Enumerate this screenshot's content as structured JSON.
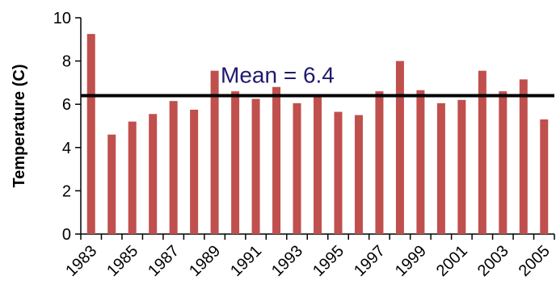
{
  "chart_data": {
    "type": "bar",
    "title": "",
    "xlabel": "",
    "ylabel": "Temperature (C)",
    "ylim": [
      0,
      10
    ],
    "yticks": [
      0,
      2,
      4,
      6,
      8,
      10
    ],
    "grid": false,
    "categories": [
      "1983",
      "1984",
      "1985",
      "1986",
      "1987",
      "1988",
      "1989",
      "1990",
      "1991",
      "1992",
      "1993",
      "1994",
      "1995",
      "1996",
      "1997",
      "1998",
      "1999",
      "2000",
      "2001",
      "2002",
      "2003",
      "2004",
      "2005"
    ],
    "x_tick_labels": [
      "1983",
      "1985",
      "1987",
      "1989",
      "1991",
      "1993",
      "1995",
      "1997",
      "1999",
      "2001",
      "2003",
      "2005"
    ],
    "values": [
      9.25,
      4.6,
      5.2,
      5.55,
      6.15,
      5.75,
      7.55,
      6.6,
      6.25,
      6.8,
      6.05,
      6.4,
      5.65,
      5.5,
      6.6,
      8.0,
      6.65,
      6.05,
      6.2,
      7.55,
      6.6,
      7.15,
      5.3
    ],
    "mean": {
      "value": 6.4,
      "label": "Mean = 6.4"
    },
    "colors": {
      "bar": "#c0504d",
      "mean_line": "#000000",
      "mean_label": "#1f1a6e",
      "axis": "#000000"
    }
  }
}
